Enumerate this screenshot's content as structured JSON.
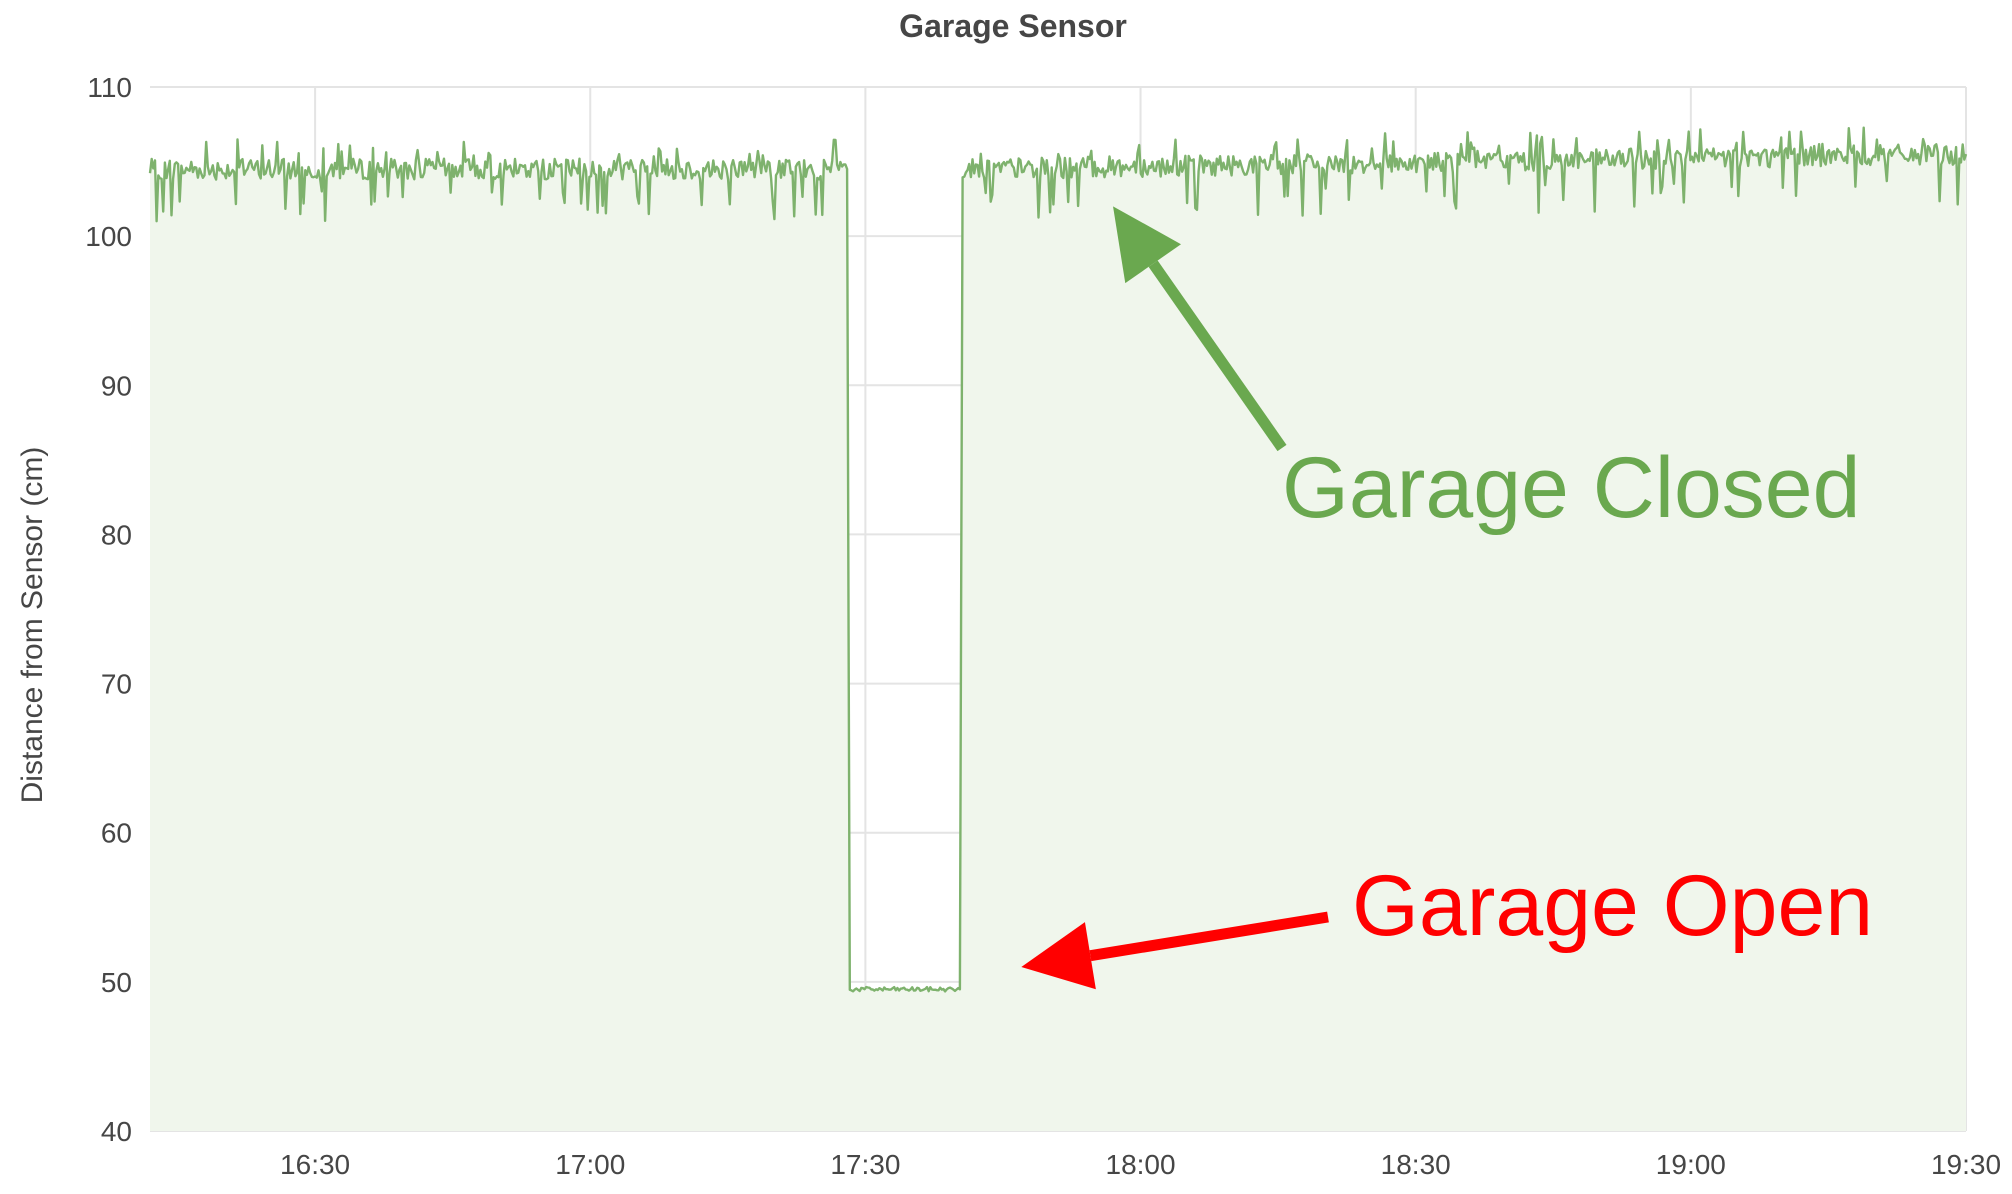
{
  "chart_data": {
    "type": "area",
    "title": "Garage Sensor",
    "xlabel": "",
    "ylabel": "Distance from Sensor (cm)",
    "x_ticks": [
      "16:30",
      "17:00",
      "17:30",
      "18:00",
      "18:30",
      "19:00",
      "19:30"
    ],
    "y_ticks": [
      "40",
      "50",
      "60",
      "70",
      "80",
      "90",
      "100",
      "110"
    ],
    "xlim": [
      "16:12",
      "19:30"
    ],
    "ylim": [
      40,
      110
    ],
    "grid": true,
    "series": [
      {
        "color": "#7eb26d",
        "fill": "#f0f6ec",
        "points": [
          {
            "t": "16:12",
            "v": 104.5
          },
          {
            "t": "17:28",
            "v": 104.5
          },
          {
            "t": "17:28.3",
            "v": 49.5
          },
          {
            "t": "17:40.3",
            "v": 49.5
          },
          {
            "t": "17:40.6",
            "v": 104.5
          },
          {
            "t": "19:30",
            "v": 105.5
          }
        ]
      }
    ],
    "annotations": [
      {
        "text": "Garage Closed",
        "color": "#6aa84f",
        "points_to": {
          "t": "17:57",
          "v": 102
        }
      },
      {
        "text": "Garage Open",
        "color": "#ff0000",
        "points_to": {
          "t": "17:47",
          "v": 51
        }
      }
    ]
  }
}
